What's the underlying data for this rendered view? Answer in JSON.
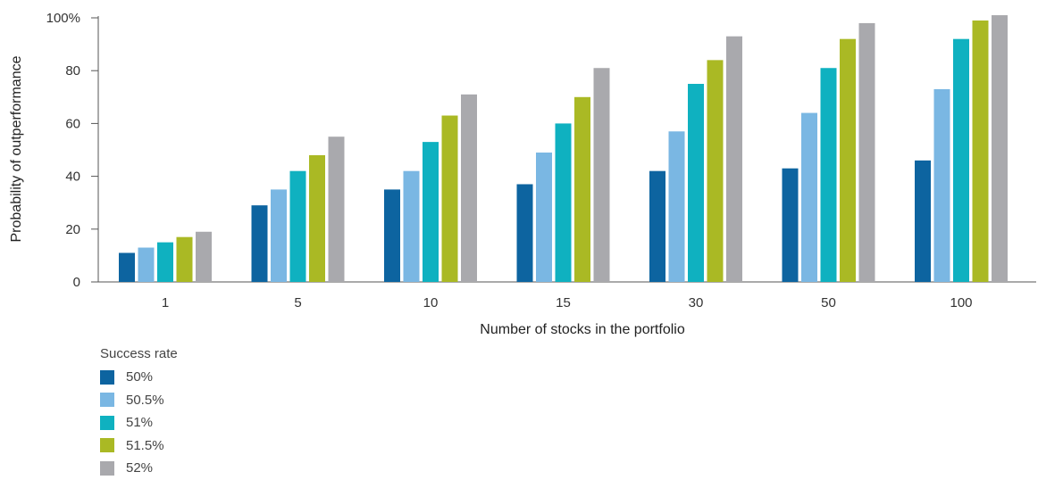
{
  "chart_data": {
    "type": "bar",
    "categories": [
      "1",
      "5",
      "10",
      "15",
      "30",
      "50",
      "100"
    ],
    "xlabel": "Number of stocks in the portfolio",
    "ylabel": "Probability of outperformance",
    "ylim": [
      0,
      100
    ],
    "yticks": [
      "0",
      "20",
      "40",
      "60",
      "80",
      "100%"
    ],
    "grid": false,
    "legend_title": "Success rate",
    "legend_position": "bottom-left",
    "series": [
      {
        "name": "50%",
        "color": "#0d64a0",
        "values": [
          11,
          29,
          35,
          37,
          42,
          43,
          46
        ]
      },
      {
        "name": "50.5%",
        "color": "#7ab7e3",
        "values": [
          13,
          35,
          42,
          49,
          57,
          64,
          73
        ]
      },
      {
        "name": "51%",
        "color": "#0fb1c0",
        "values": [
          15,
          42,
          53,
          60,
          75,
          81,
          92
        ]
      },
      {
        "name": "51.5%",
        "color": "#aab924",
        "values": [
          17,
          48,
          63,
          70,
          84,
          92,
          99
        ]
      },
      {
        "name": "52%",
        "color": "#a9a9ad",
        "values": [
          19,
          55,
          71,
          81,
          93,
          98,
          101
        ]
      }
    ]
  }
}
